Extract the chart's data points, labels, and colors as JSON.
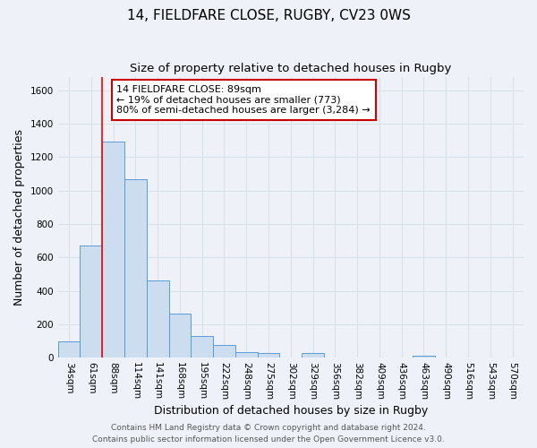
{
  "title_line1": "14, FIELDFARE CLOSE, RUGBY, CV23 0WS",
  "title_line2": "Size of property relative to detached houses in Rugby",
  "xlabel": "Distribution of detached houses by size in Rugby",
  "ylabel": "Number of detached properties",
  "categories": [
    "34sqm",
    "61sqm",
    "88sqm",
    "114sqm",
    "141sqm",
    "168sqm",
    "195sqm",
    "222sqm",
    "248sqm",
    "275sqm",
    "302sqm",
    "329sqm",
    "356sqm",
    "382sqm",
    "409sqm",
    "436sqm",
    "463sqm",
    "490sqm",
    "516sqm",
    "543sqm",
    "570sqm"
  ],
  "values": [
    100,
    670,
    1290,
    1070,
    465,
    265,
    130,
    75,
    35,
    30,
    0,
    30,
    0,
    0,
    0,
    0,
    15,
    0,
    0,
    0,
    0
  ],
  "bar_color": "#ccddf0",
  "bar_edge_color": "#5b9bd5",
  "bar_width": 1.0,
  "ylim": [
    0,
    1680
  ],
  "yticks": [
    0,
    200,
    400,
    600,
    800,
    1000,
    1200,
    1400,
    1600
  ],
  "red_line_index": 2,
  "annotation_line1": "14 FIELDFARE CLOSE: 89sqm",
  "annotation_line2": "← 19% of detached houses are smaller (773)",
  "annotation_line3": "80% of semi-detached houses are larger (3,284) →",
  "annotation_box_color": "#ffffff",
  "annotation_box_edge": "#cc0000",
  "footer_line1": "Contains HM Land Registry data © Crown copyright and database right 2024.",
  "footer_line2": "Contains public sector information licensed under the Open Government Licence v3.0.",
  "background_color": "#eef2f8",
  "grid_color": "#d8e0ec",
  "title_fontsize": 11,
  "subtitle_fontsize": 9.5,
  "axis_label_fontsize": 9,
  "tick_fontsize": 7.5,
  "annotation_fontsize": 8,
  "footer_fontsize": 6.5
}
